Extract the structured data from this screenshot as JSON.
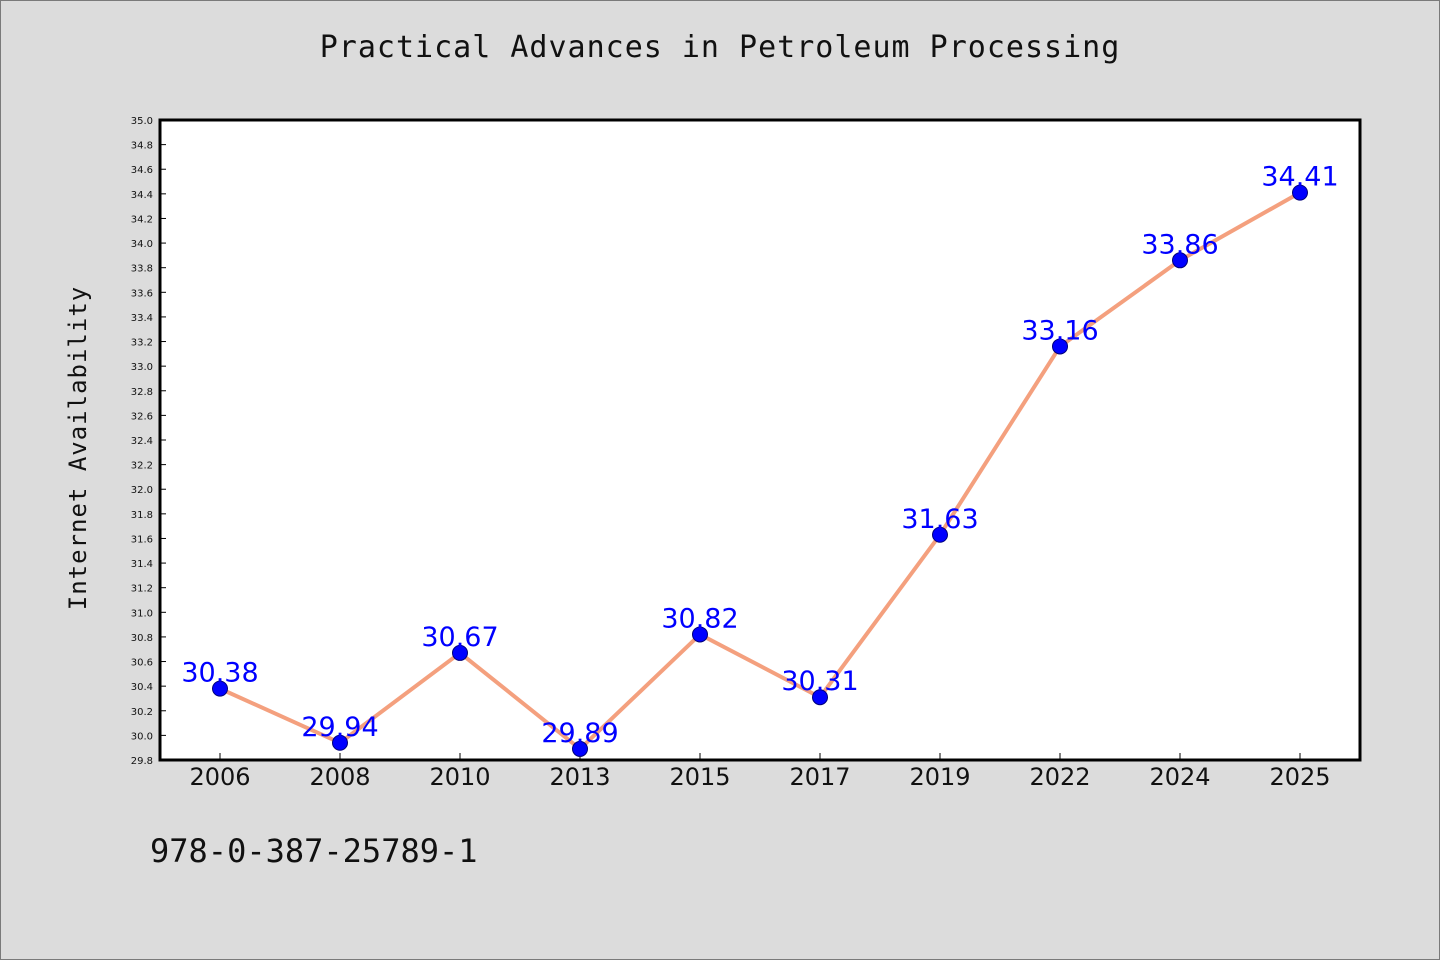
{
  "chart_data": {
    "type": "line",
    "title": "Practical Advances in Petroleum Processing",
    "xlabel": "",
    "ylabel": "Internet Availability",
    "categories": [
      "2006",
      "2008",
      "2010",
      "2013",
      "2015",
      "2017",
      "2019",
      "2022",
      "2024",
      "2025"
    ],
    "series": [
      {
        "values": [
          30.38,
          29.94,
          30.67,
          29.89,
          30.82,
          30.31,
          31.63,
          33.16,
          33.86,
          34.41
        ],
        "labels": [
          "30.38",
          "29.94",
          "30.67",
          "29.89",
          "30.82",
          "30.31",
          "31.63",
          "33.16",
          "33.86",
          "34.41"
        ]
      }
    ],
    "ylim": [
      29.8,
      35.0
    ],
    "ytick_step": 0.2,
    "yticks": [
      "29.8",
      "30.0",
      "30.2",
      "30.4",
      "30.6",
      "30.8",
      "31.0",
      "31.2",
      "31.4",
      "31.6",
      "31.8",
      "32.0",
      "32.2",
      "32.4",
      "32.6",
      "32.8",
      "33.0",
      "33.2",
      "33.4",
      "33.6",
      "33.8",
      "34.0",
      "34.2",
      "34.4",
      "34.6",
      "34.8",
      "35.0"
    ],
    "grid": false,
    "colors": {
      "line": "#f4a07e",
      "marker": "#0000ff",
      "data_label": "#0000ff",
      "background": "#dcdcdc",
      "plot_background": "#ffffff"
    }
  },
  "footer": {
    "isbn": "978-0-387-25789-1"
  }
}
